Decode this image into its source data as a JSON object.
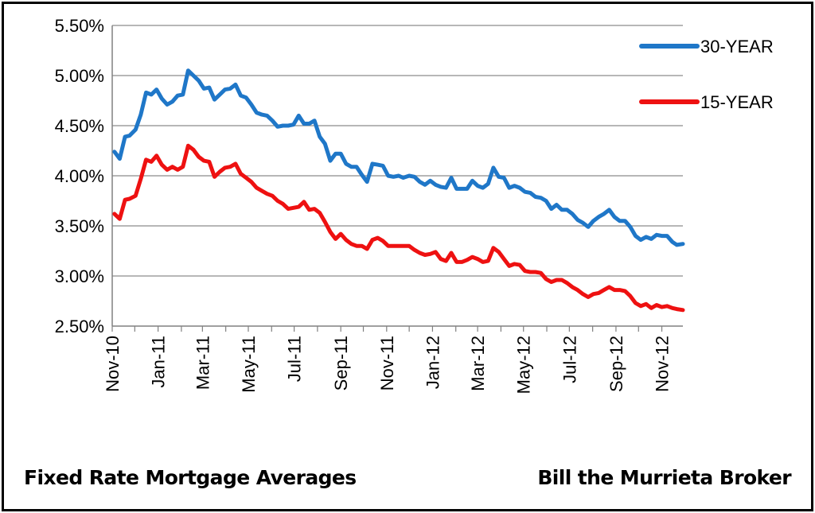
{
  "chart_data": {
    "type": "line",
    "title": "",
    "xlabel": "",
    "ylabel": "",
    "ylim": [
      0.025,
      0.055
    ],
    "y_ticks": [
      "5.50%",
      "5.00%",
      "4.50%",
      "4.00%",
      "3.50%",
      "3.00%",
      "2.50%"
    ],
    "x_ticks": [
      "Nov-10",
      "Jan-11",
      "Mar-11",
      "May-11",
      "Jul-11",
      "Sep-11",
      "Nov-11",
      "Jan-12",
      "Mar-12",
      "May-12",
      "Jul-12",
      "Sep-12",
      "Nov-12"
    ],
    "grid": "horizontal",
    "legend_position": "top-right",
    "x": [
      "2010-11-04",
      "2010-11-11",
      "2010-11-18",
      "2010-11-24",
      "2010-12-02",
      "2010-12-09",
      "2010-12-16",
      "2010-12-23",
      "2010-12-30",
      "2011-01-06",
      "2011-01-13",
      "2011-01-20",
      "2011-01-27",
      "2011-02-03",
      "2011-02-10",
      "2011-02-17",
      "2011-02-24",
      "2011-03-03",
      "2011-03-10",
      "2011-03-17",
      "2011-03-24",
      "2011-03-31",
      "2011-04-07",
      "2011-04-14",
      "2011-04-21",
      "2011-04-28",
      "2011-05-05",
      "2011-05-12",
      "2011-05-19",
      "2011-05-26",
      "2011-06-02",
      "2011-06-09",
      "2011-06-16",
      "2011-06-23",
      "2011-06-30",
      "2011-07-07",
      "2011-07-14",
      "2011-07-21",
      "2011-07-28",
      "2011-08-04",
      "2011-08-11",
      "2011-08-18",
      "2011-08-25",
      "2011-09-01",
      "2011-09-08",
      "2011-09-15",
      "2011-09-22",
      "2011-09-29",
      "2011-10-06",
      "2011-10-13",
      "2011-10-20",
      "2011-10-27",
      "2011-11-03",
      "2011-11-10",
      "2011-11-17",
      "2011-11-23",
      "2011-12-01",
      "2011-12-08",
      "2011-12-15",
      "2011-12-22",
      "2011-12-29",
      "2012-01-05",
      "2012-01-12",
      "2012-01-19",
      "2012-01-26",
      "2012-02-02",
      "2012-02-09",
      "2012-02-16",
      "2012-02-23",
      "2012-03-01",
      "2012-03-08",
      "2012-03-15",
      "2012-03-22",
      "2012-03-29",
      "2012-04-05",
      "2012-04-12",
      "2012-04-19",
      "2012-04-26",
      "2012-05-03",
      "2012-05-10",
      "2012-05-17",
      "2012-05-24",
      "2012-05-31",
      "2012-06-07",
      "2012-06-14",
      "2012-06-21",
      "2012-06-28",
      "2012-07-05",
      "2012-07-12",
      "2012-07-19",
      "2012-07-26",
      "2012-08-02",
      "2012-08-09",
      "2012-08-16",
      "2012-08-23",
      "2012-08-30",
      "2012-09-06",
      "2012-09-13",
      "2012-09-20",
      "2012-09-27",
      "2012-10-04",
      "2012-10-11",
      "2012-10-18",
      "2012-10-25",
      "2012-11-01",
      "2012-11-08",
      "2012-11-15",
      "2012-11-21",
      "2012-11-29"
    ],
    "series": [
      {
        "name": "30-YEAR",
        "color": "#1f77c8",
        "values": [
          4.24,
          4.17,
          4.39,
          4.4,
          4.46,
          4.61,
          4.83,
          4.81,
          4.86,
          4.77,
          4.71,
          4.74,
          4.8,
          4.81,
          5.05,
          5.0,
          4.95,
          4.87,
          4.88,
          4.76,
          4.81,
          4.86,
          4.87,
          4.91,
          4.8,
          4.78,
          4.71,
          4.63,
          4.61,
          4.6,
          4.55,
          4.49,
          4.5,
          4.5,
          4.51,
          4.6,
          4.52,
          4.52,
          4.55,
          4.39,
          4.32,
          4.15,
          4.22,
          4.22,
          4.12,
          4.09,
          4.09,
          4.01,
          3.94,
          4.12,
          4.11,
          4.1,
          4.0,
          3.99,
          4.0,
          3.98,
          4.0,
          3.99,
          3.94,
          3.91,
          3.95,
          3.91,
          3.89,
          3.88,
          3.98,
          3.87,
          3.87,
          3.87,
          3.95,
          3.9,
          3.88,
          3.92,
          4.08,
          3.99,
          3.98,
          3.88,
          3.9,
          3.88,
          3.84,
          3.83,
          3.79,
          3.78,
          3.75,
          3.67,
          3.71,
          3.66,
          3.66,
          3.62,
          3.56,
          3.53,
          3.49,
          3.55,
          3.59,
          3.62,
          3.66,
          3.59,
          3.55,
          3.55,
          3.49,
          3.4,
          3.36,
          3.39,
          3.37,
          3.41,
          3.4,
          3.4,
          3.34,
          3.31,
          3.32
        ]
      },
      {
        "name": "15-YEAR",
        "color": "#ee1111",
        "values": [
          3.62,
          3.57,
          3.76,
          3.77,
          3.8,
          3.97,
          4.16,
          4.14,
          4.2,
          4.11,
          4.06,
          4.09,
          4.06,
          4.09,
          4.3,
          4.26,
          4.19,
          4.15,
          4.14,
          3.99,
          4.04,
          4.08,
          4.09,
          4.12,
          4.02,
          3.98,
          3.94,
          3.88,
          3.85,
          3.82,
          3.8,
          3.75,
          3.72,
          3.67,
          3.68,
          3.69,
          3.74,
          3.66,
          3.67,
          3.63,
          3.54,
          3.44,
          3.37,
          3.42,
          3.36,
          3.32,
          3.3,
          3.3,
          3.27,
          3.36,
          3.38,
          3.35,
          3.3,
          3.3,
          3.3,
          3.3,
          3.3,
          3.26,
          3.23,
          3.21,
          3.22,
          3.24,
          3.17,
          3.15,
          3.23,
          3.14,
          3.14,
          3.16,
          3.19,
          3.17,
          3.14,
          3.15,
          3.28,
          3.24,
          3.17,
          3.1,
          3.12,
          3.11,
          3.05,
          3.04,
          3.04,
          3.03,
          2.97,
          2.94,
          2.96,
          2.96,
          2.93,
          2.89,
          2.86,
          2.82,
          2.79,
          2.82,
          2.83,
          2.86,
          2.89,
          2.86,
          2.86,
          2.85,
          2.8,
          2.73,
          2.7,
          2.72,
          2.68,
          2.71,
          2.69,
          2.7,
          2.68,
          2.67,
          2.66
        ]
      }
    ]
  },
  "legend": {
    "items": [
      {
        "label": "30-YEAR",
        "color": "#1f77c8"
      },
      {
        "label": "15-YEAR",
        "color": "#ee1111"
      }
    ]
  },
  "footer": {
    "left": "Fixed Rate Mortgage Averages",
    "right": "Bill the Murrieta Broker"
  }
}
